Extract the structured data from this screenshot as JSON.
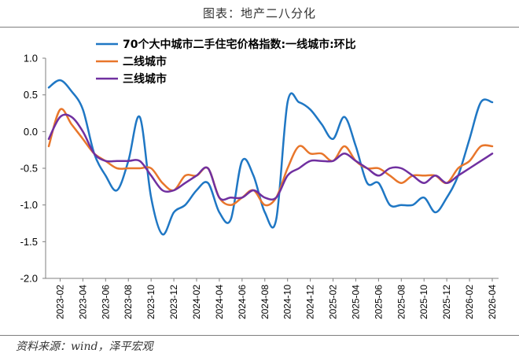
{
  "header": {
    "title": "图表：地产二八分化"
  },
  "footer": {
    "source": "资料来源：wind，泽平宏观"
  },
  "colors": {
    "tier1": "#1f77c4",
    "tier2": "#e8762b",
    "tier3": "#7030a0"
  },
  "chart_data": {
    "type": "line",
    "ylim": [
      -2.0,
      1.0
    ],
    "yticks": [
      "1.0",
      "0.5",
      "0.0",
      "-0.5",
      "-1.0",
      "-1.5",
      "-2.0"
    ],
    "xticks": [
      "2023-02",
      "2023-04",
      "2023-06",
      "2023-08",
      "2023-10",
      "2023-12",
      "2024-02",
      "2024-04",
      "2024-06",
      "2024-08",
      "2024-10",
      "2024-12",
      "2025-02",
      "2025-04",
      "2025-06",
      "2025-08",
      "2025-10",
      "2025-12",
      "2026-02",
      "2026-04"
    ],
    "x": [
      "2023-01",
      "2023-02",
      "2023-03",
      "2023-04",
      "2023-05",
      "2023-06",
      "2023-07",
      "2023-08",
      "2023-09",
      "2023-10",
      "2023-11",
      "2023-12",
      "2024-01",
      "2024-02",
      "2024-03",
      "2024-04",
      "2024-05",
      "2024-06",
      "2024-07",
      "2024-08",
      "2024-09",
      "2024-10",
      "2024-11",
      "2024-12",
      "2025-01",
      "2025-02",
      "2025-03",
      "2025-04",
      "2025-05",
      "2025-06",
      "2025-07",
      "2025-08",
      "2025-09",
      "2025-10",
      "2025-11",
      "2025-12",
      "2026-01",
      "2026-02",
      "2026-03",
      "2026-04"
    ],
    "grid": false,
    "legend_position": "top-center",
    "series": [
      {
        "name": "70个大中城市二手住宅价格指数:一线城市:环比",
        "values": [
          0.6,
          0.7,
          0.55,
          0.3,
          -0.3,
          -0.6,
          -0.8,
          -0.4,
          0.2,
          -0.9,
          -1.4,
          -1.1,
          -1.0,
          -0.8,
          -0.7,
          -1.1,
          -1.2,
          -0.4,
          -0.6,
          -1.1,
          -1.2,
          0.4,
          0.4,
          0.3,
          0.1,
          -0.1,
          0.2,
          -0.2,
          -0.7,
          -0.7,
          -1.0,
          -1.0,
          -1.0,
          -0.9,
          -1.1,
          -0.9,
          -0.6,
          -0.1,
          0.4,
          0.4
        ]
      },
      {
        "name": "二线城市",
        "values": [
          -0.2,
          0.3,
          0.1,
          -0.1,
          -0.3,
          -0.4,
          -0.5,
          -0.5,
          -0.5,
          -0.5,
          -0.7,
          -0.8,
          -0.6,
          -0.6,
          -0.5,
          -0.9,
          -1.0,
          -0.9,
          -0.8,
          -1.0,
          -0.9,
          -0.5,
          -0.2,
          -0.3,
          -0.3,
          -0.4,
          -0.2,
          -0.4,
          -0.5,
          -0.5,
          -0.6,
          -0.7,
          -0.6,
          -0.6,
          -0.6,
          -0.7,
          -0.5,
          -0.4,
          -0.2,
          -0.2
        ]
      },
      {
        "name": "三线城市",
        "values": [
          -0.1,
          0.2,
          0.2,
          0.0,
          -0.3,
          -0.4,
          -0.4,
          -0.4,
          -0.4,
          -0.6,
          -0.8,
          -0.8,
          -0.7,
          -0.6,
          -0.5,
          -0.9,
          -0.9,
          -0.9,
          -0.8,
          -0.9,
          -0.9,
          -0.6,
          -0.5,
          -0.4,
          -0.4,
          -0.4,
          -0.3,
          -0.4,
          -0.5,
          -0.6,
          -0.5,
          -0.5,
          -0.6,
          -0.7,
          -0.6,
          -0.7,
          -0.6,
          -0.5,
          -0.4,
          -0.3
        ]
      }
    ]
  }
}
